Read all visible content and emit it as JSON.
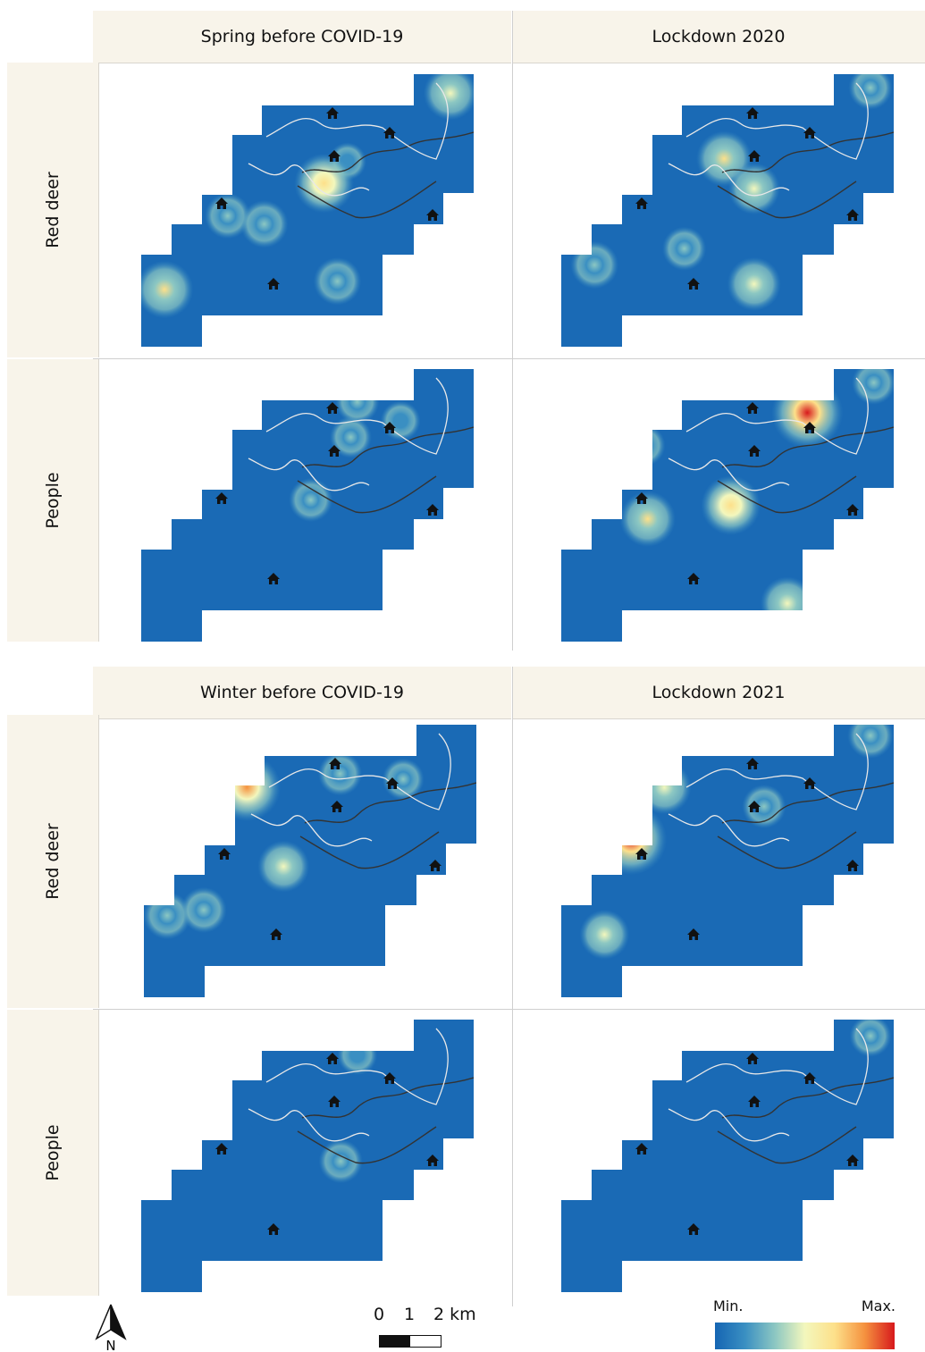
{
  "blocks": [
    {
      "columns": [
        "Spring before COVID-19",
        "Lockdown 2020"
      ],
      "rows": [
        "Red deer",
        "People"
      ]
    },
    {
      "columns": [
        "Winter before COVID-19",
        "Lockdown 2021"
      ],
      "rows": [
        "Red deer",
        "People"
      ]
    }
  ],
  "maps": [
    {
      "season": "Spring before COVID-19",
      "species": "Red deer",
      "hotspots": [
        [
          0.93,
          0.07,
          0.55
        ],
        [
          0.62,
          0.32,
          0.15
        ],
        [
          0.26,
          0.52,
          0.35
        ],
        [
          0.55,
          0.4,
          0.7
        ],
        [
          0.07,
          0.79,
          0.65
        ],
        [
          0.59,
          0.76,
          0.4
        ],
        [
          0.37,
          0.55,
          0.4
        ]
      ]
    },
    {
      "season": "Lockdown 2020",
      "species": "Red deer",
      "hotspots": [
        [
          0.49,
          0.31,
          0.6
        ],
        [
          0.58,
          0.42,
          0.5
        ],
        [
          0.1,
          0.7,
          0.4
        ],
        [
          0.58,
          0.77,
          0.55
        ],
        [
          0.37,
          0.64,
          0.3
        ],
        [
          0.93,
          0.05,
          0.3
        ]
      ]
    },
    {
      "season": "Spring before COVID-19",
      "species": "People",
      "hotspots": [
        [
          0.63,
          0.25,
          0.25
        ],
        [
          0.65,
          0.12,
          0.3
        ],
        [
          0.51,
          0.48,
          0.3
        ],
        [
          0.78,
          0.19,
          0.2
        ]
      ]
    },
    {
      "season": "Lockdown 2020",
      "species": "People",
      "hotspots": [
        [
          0.74,
          0.16,
          1.0
        ],
        [
          0.26,
          0.55,
          0.6
        ],
        [
          0.51,
          0.5,
          0.7
        ],
        [
          0.68,
          0.86,
          0.55
        ],
        [
          0.25,
          0.28,
          0.25
        ],
        [
          0.94,
          0.05,
          0.3
        ]
      ]
    },
    {
      "season": "Winter before COVID-19",
      "species": "Red deer",
      "hotspots": [
        [
          0.31,
          0.23,
          0.9
        ],
        [
          0.42,
          0.52,
          0.5
        ],
        [
          0.07,
          0.7,
          0.4
        ],
        [
          0.18,
          0.68,
          0.35
        ],
        [
          0.59,
          0.18,
          0.3
        ],
        [
          0.78,
          0.2,
          0.25
        ]
      ]
    },
    {
      "season": "Lockdown 2021",
      "species": "Red deer",
      "hotspots": [
        [
          0.21,
          0.42,
          1.0
        ],
        [
          0.31,
          0.23,
          0.55
        ],
        [
          0.13,
          0.77,
          0.45
        ],
        [
          0.61,
          0.3,
          0.3
        ],
        [
          0.93,
          0.04,
          0.35
        ]
      ]
    },
    {
      "season": "Winter before COVID-19",
      "species": "People",
      "hotspots": [
        [
          0.6,
          0.52,
          0.3
        ],
        [
          0.65,
          0.13,
          0.2
        ]
      ]
    },
    {
      "season": "Lockdown 2021",
      "species": "People",
      "hotspots": [
        [
          0.93,
          0.06,
          0.25
        ]
      ]
    }
  ],
  "scale_bar": {
    "labels": [
      "0",
      "1",
      "2 km"
    ]
  },
  "north_arrow": {
    "label": "N",
    "icon": "north-arrow-icon"
  },
  "legend": {
    "min_label": "Min.",
    "max_label": "Max.",
    "colors": [
      "#1565b3",
      "#3a8fc2",
      "#8cc7c2",
      "#f3f7bd",
      "#fde08a",
      "#f5923f",
      "#d7191c"
    ]
  },
  "colors": {
    "base": "#1a6ab5",
    "header_bg": "#f8f4ea",
    "line_dark": "#333333",
    "line_light": "#e8e8e8"
  }
}
